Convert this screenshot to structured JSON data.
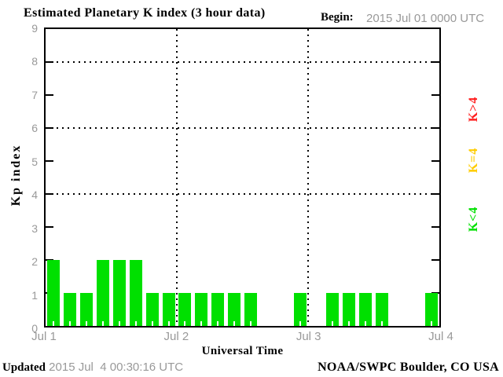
{
  "header": {
    "title": "Estimated Planetary K index (3 hour data)",
    "begin_label": "Begin:",
    "begin_value": "2015 Jul 01 0000 UTC"
  },
  "axes": {
    "y_title": "Kp index",
    "y_ticks": [
      0,
      1,
      2,
      3,
      4,
      5,
      6,
      7,
      8,
      9
    ],
    "x_title": "Universal Time",
    "x_labels": [
      "Jul 1",
      "Jul 2",
      "Jul 3",
      "Jul 4"
    ]
  },
  "legend": [
    {
      "label": "K>4",
      "color": "#ff1f1f"
    },
    {
      "label": "K=4",
      "color": "#ffcc00"
    },
    {
      "label": "K<4",
      "color": "#00e000"
    }
  ],
  "footer": {
    "updated_label": "Updated",
    "updated_value": " 2015 Jul  4 00:30:16 UTC",
    "credit": "NOAA/SWPC Boulder, CO USA"
  },
  "chart_data": {
    "type": "bar",
    "title": "Estimated Planetary K index (3 hour data)",
    "xlabel": "Universal Time",
    "ylabel": "Kp index",
    "ylim": [
      0,
      9
    ],
    "yticks": [
      0,
      1,
      2,
      3,
      4,
      5,
      6,
      7,
      8,
      9
    ],
    "grid_y": [
      4,
      6,
      8
    ],
    "grid_x_day_boundaries": [
      "Jul 2",
      "Jul 3"
    ],
    "legend_position": "right",
    "bin_hours": 3,
    "begin": "2015 Jul 01 0000 UTC",
    "days": [
      "Jul 1",
      "Jul 2",
      "Jul 3"
    ],
    "values": [
      2,
      1,
      1,
      2,
      2,
      2,
      1,
      1,
      1,
      1,
      1,
      1,
      1,
      0,
      0,
      1,
      0,
      1,
      1,
      1,
      1,
      0,
      0,
      1
    ],
    "color_rules": {
      "k_lt_4": "#00e000",
      "k_eq_4": "#ffcc00",
      "k_gt_4": "#ff1f1f"
    }
  }
}
